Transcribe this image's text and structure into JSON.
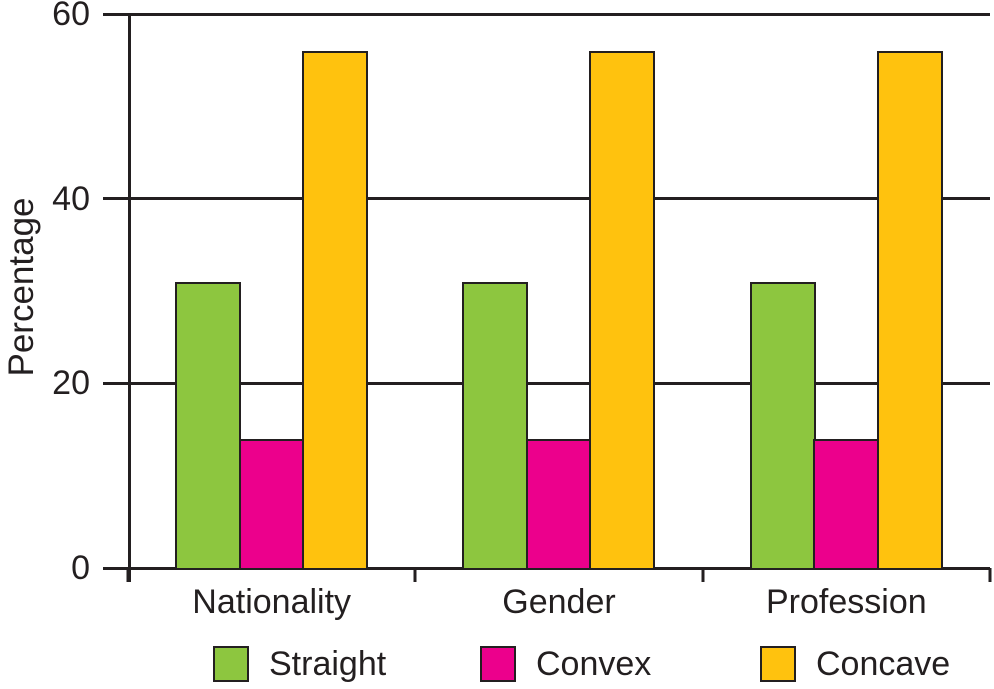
{
  "chart_data": {
    "type": "bar",
    "title": "",
    "categories": [
      "Nationality",
      "Gender",
      "Profession"
    ],
    "series": [
      {
        "name": "Straight",
        "color": "#8DC63F",
        "values": [
          31,
          31,
          31
        ]
      },
      {
        "name": "Convex",
        "color": "#EC008C",
        "values": [
          14,
          14,
          14
        ]
      },
      {
        "name": "Concave",
        "color": "#FFC20E",
        "values": [
          56,
          56,
          56
        ]
      }
    ],
    "xlabel": "",
    "ylabel": "Percentage",
    "ylim": [
      0,
      60
    ],
    "yticks": [
      0,
      20,
      40,
      60
    ],
    "grid": true,
    "legend_position": "bottom"
  },
  "colors": {
    "axis": "#231F20",
    "text": "#231F20",
    "background": "#FFFFFF",
    "series_green": "#8DC63F",
    "series_magenta": "#EC008C",
    "series_yellow": "#FFC20E"
  }
}
